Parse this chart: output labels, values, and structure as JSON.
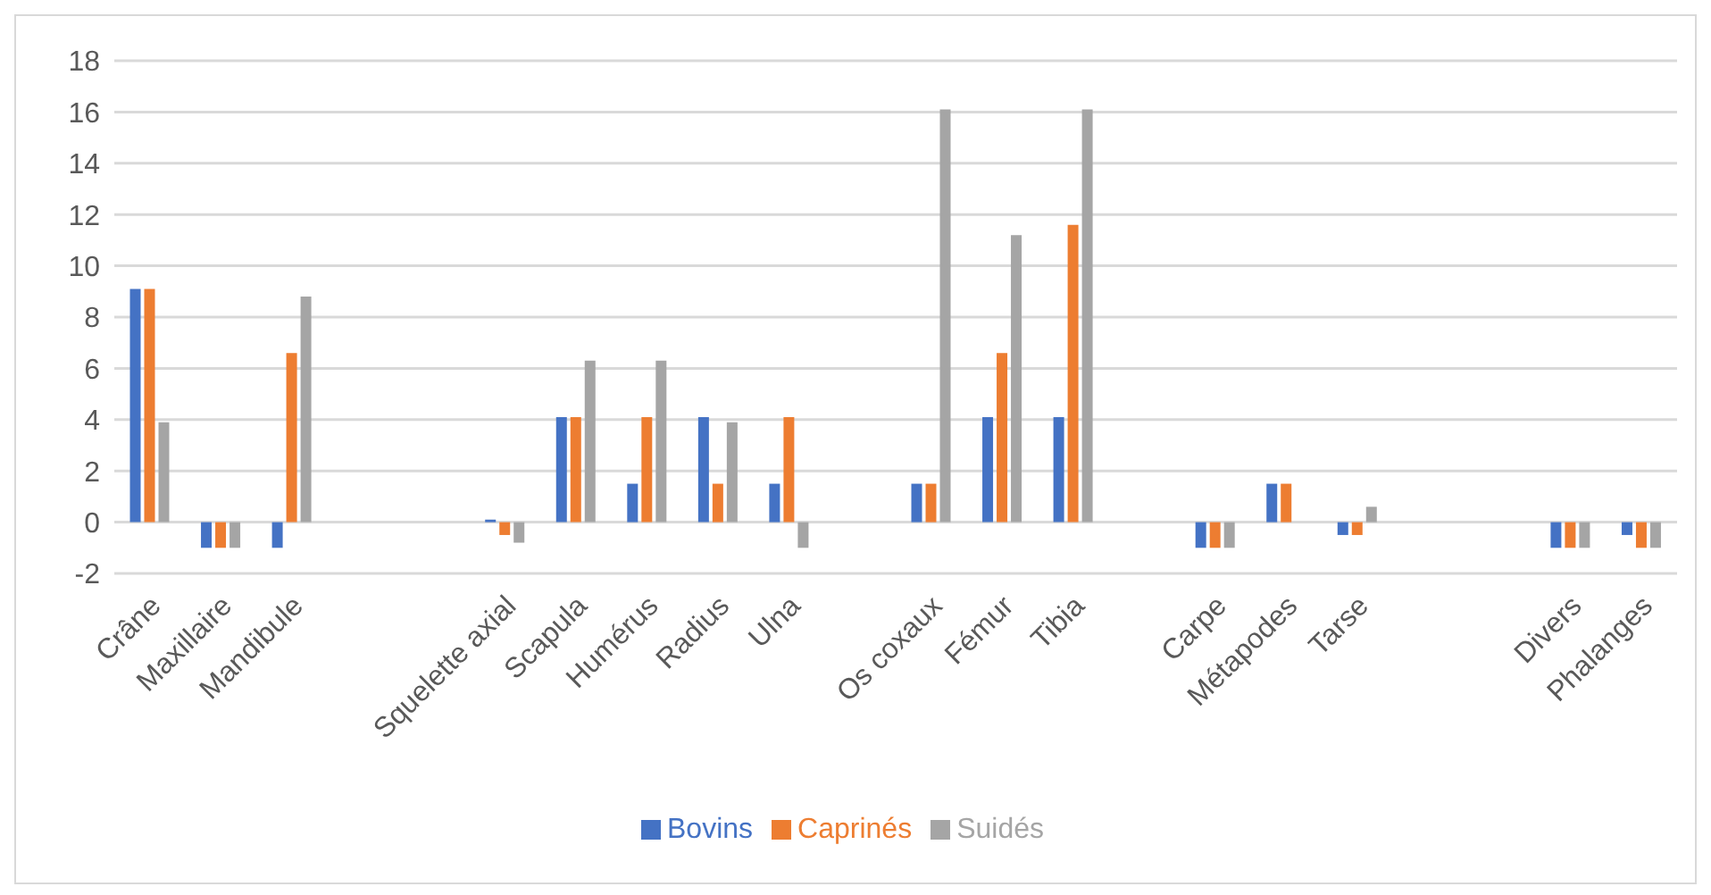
{
  "chart_data": {
    "type": "bar",
    "categories": [
      "Crâne",
      "Maxillaire",
      "Mandibule",
      null,
      null,
      "Squelette axial",
      "Scapula",
      "Humérus",
      "Radius",
      "Ulna",
      null,
      "Os coxaux",
      "Fémur",
      "Tibia",
      null,
      "Carpe",
      "Métapodes",
      "Tarse",
      null,
      null,
      "Divers",
      "Phalanges"
    ],
    "series": [
      {
        "name": "Bovins",
        "color": "#4472c4",
        "values": [
          9.1,
          -1,
          -1,
          null,
          null,
          0.1,
          4.1,
          1.5,
          4.1,
          1.5,
          null,
          1.5,
          4.1,
          4.1,
          null,
          -1,
          1.5,
          -0.5,
          null,
          null,
          -1,
          -0.5
        ]
      },
      {
        "name": "Caprinés",
        "color": "#ed7d31",
        "values": [
          9.1,
          -1,
          6.6,
          null,
          null,
          -0.5,
          4.1,
          4.1,
          1.5,
          4.1,
          null,
          1.5,
          6.6,
          11.6,
          null,
          -1,
          1.5,
          -0.5,
          null,
          null,
          -1,
          -1
        ]
      },
      {
        "name": "Suidés",
        "color": "#a5a5a5",
        "values": [
          3.9,
          -1,
          8.8,
          null,
          null,
          -0.8,
          6.3,
          6.3,
          3.9,
          -1,
          null,
          16.1,
          11.2,
          16.1,
          null,
          -1,
          0,
          0.6,
          null,
          null,
          -1,
          -1
        ]
      }
    ],
    "ylim": [
      -2,
      18
    ],
    "yticks": [
      -2,
      0,
      2,
      4,
      6,
      8,
      10,
      12,
      14,
      16,
      18
    ],
    "grid": "y",
    "legend": "bottom"
  }
}
